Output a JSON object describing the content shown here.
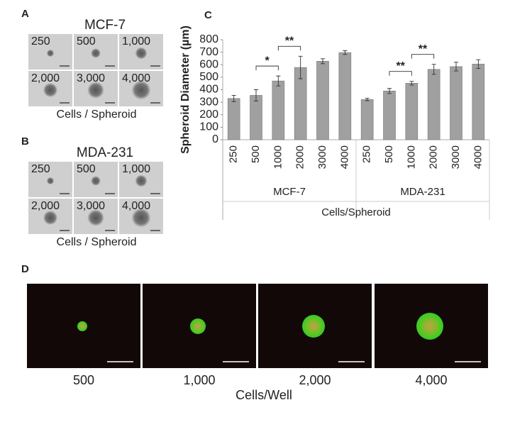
{
  "panels": [
    {
      "letter": "A",
      "title": "MCF-7",
      "labels": [
        "250",
        "500",
        "1,000",
        "2,000",
        "3,000",
        "4,000"
      ],
      "xlabel": "Cells / Spheroid"
    },
    {
      "letter": "B",
      "title": "MDA-231",
      "labels": [
        "250",
        "500",
        "1,000",
        "2,000",
        "3,000",
        "4,000"
      ],
      "xlabel": "Cells / Spheroid"
    }
  ],
  "fluorescence": {
    "letter": "D",
    "labels": [
      "500",
      "1,000",
      "2,000",
      "4,000"
    ],
    "xlabel": "Cells/Well"
  },
  "chart_data": {
    "type": "bar",
    "title": "C",
    "ylabel": "Spheroid Diameter (µm)",
    "xlabel": "Cells/Spheroid",
    "ylim": [
      0,
      800
    ],
    "yticks": [
      0,
      100,
      200,
      300,
      400,
      500,
      600,
      700,
      800
    ],
    "color": "#a0a0a0",
    "groups": [
      {
        "name": "MCF-7",
        "categories": [
          "250",
          "500",
          "1000",
          "2000",
          "3000",
          "4000"
        ],
        "values": [
          330,
          355,
          470,
          578,
          628,
          697
        ],
        "errors": [
          25,
          45,
          40,
          90,
          20,
          15
        ]
      },
      {
        "name": "MDA-231",
        "categories": [
          "250",
          "500",
          "1000",
          "2000",
          "3000",
          "4000"
        ],
        "values": [
          322,
          390,
          452,
          563,
          585,
          605
        ],
        "errors": [
          10,
          20,
          15,
          40,
          35,
          35
        ]
      }
    ],
    "annotations": [
      {
        "text": "*",
        "group": 0,
        "pair": [
          1,
          2
        ]
      },
      {
        "text": "**",
        "group": 0,
        "pair": [
          2,
          3
        ]
      },
      {
        "text": "**",
        "group": 1,
        "pair": [
          1,
          2
        ]
      },
      {
        "text": "**",
        "group": 1,
        "pair": [
          2,
          3
        ]
      }
    ]
  }
}
